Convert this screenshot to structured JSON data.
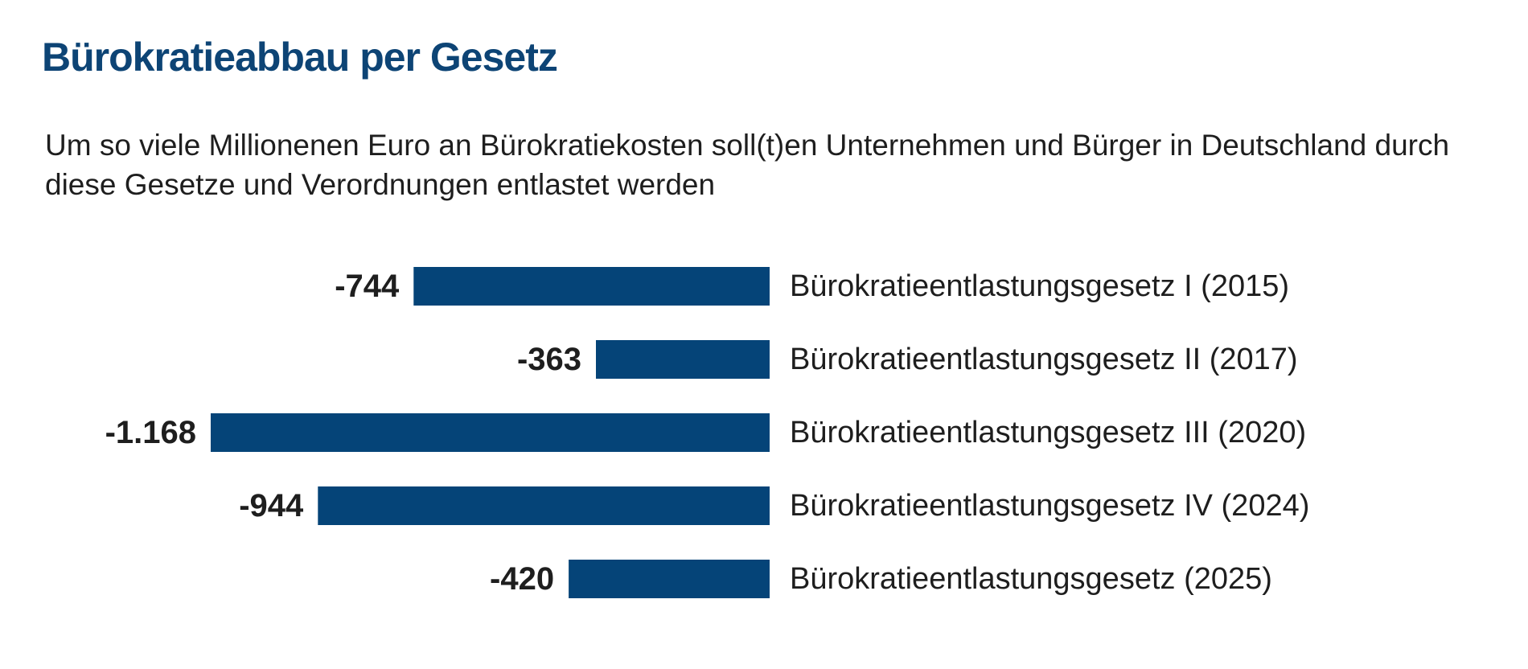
{
  "title": "Bürokratieabbau per Gesetz",
  "subtitle": "Um so viele Millionenen Euro an Bürokratiekosten soll(t)en Unternehmen und Bürger in Deutschland durch diese Gesetze und Verordnungen entlastet werden",
  "colors": {
    "bar": "#054478",
    "title": "#0d4475",
    "text": "#1e1e1e"
  },
  "chart_data": {
    "type": "bar",
    "orientation": "horizontal",
    "title": "Bürokratieabbau per Gesetz",
    "subtitle": "Um so viele Millionenen Euro an Bürokratiekosten soll(t)en Unternehmen und Bürger in Deutschland durch diese Gesetze und Verordnungen entlastet werden",
    "categories": [
      "Bürokratieentlastungsgesetz I (2015)",
      "Bürokratieentlastungsgesetz II (2017)",
      "Bürokratieentlastungsgesetz III (2020)",
      "Bürokratieentlastungsgesetz IV (2024)",
      "Bürokratieentlastungsgesetz (2025)"
    ],
    "values": [
      -744,
      -363,
      -1168,
      -944,
      -420
    ],
    "value_labels": [
      "-744",
      "-363",
      "-1.168",
      "-944",
      "-420"
    ],
    "unit": "Mio. Euro",
    "xlim": [
      -1168,
      0
    ],
    "grid": false,
    "legend": "none",
    "data_labels": "left of bar end"
  }
}
